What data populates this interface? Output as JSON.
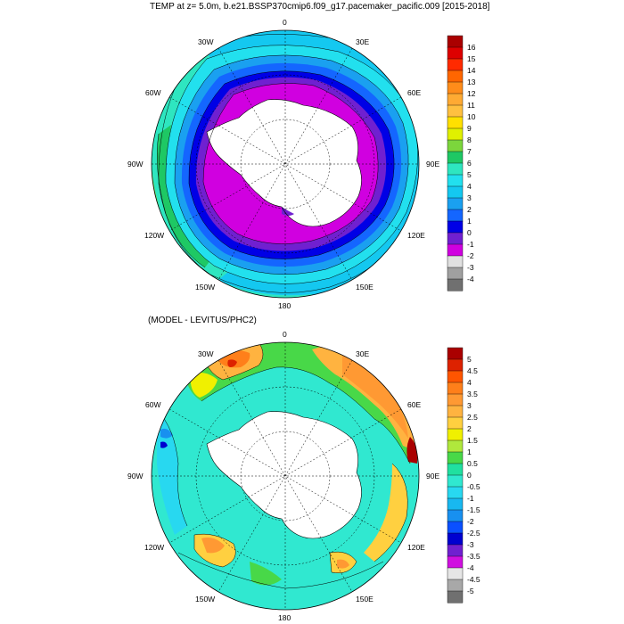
{
  "panels": [
    {
      "title": "TEMP at z=   5.0m, b.e21.BSSP370cmip6.f09_g17.pacemaker_pacific.009 [2015-2018]",
      "longitude_labels": [
        "0",
        "30E",
        "60E",
        "90E",
        "120E",
        "150E",
        "180",
        "150W",
        "120W",
        "90W",
        "60W",
        "30W"
      ],
      "colorbar": {
        "labels": [
          "16",
          "15",
          "14",
          "13",
          "12",
          "11",
          "10",
          "9",
          "8",
          "7",
          "6",
          "5",
          "4",
          "3",
          "2",
          "1",
          "0",
          "-1",
          "-2",
          "-3",
          "-4"
        ],
        "colors": [
          "#aa0000",
          "#dd0000",
          "#ff2a00",
          "#ff6600",
          "#ff8c1a",
          "#ffaa33",
          "#ffc040",
          "#ffe000",
          "#e0f000",
          "#7cd63c",
          "#1ec864",
          "#2ee6c0",
          "#22e0ee",
          "#14c8f0",
          "#1aa0f0",
          "#1466ff",
          "#0000e6",
          "#7020d0",
          "#d000e0",
          "#e0e0e0",
          "#a0a0a0",
          "#707070"
        ]
      }
    },
    {
      "title": "(MODEL - LEVITUS/PHC2)",
      "longitude_labels": [
        "0",
        "30E",
        "60E",
        "90E",
        "120E",
        "150E",
        "180",
        "150W",
        "120W",
        "90W",
        "60W",
        "30W"
      ],
      "colorbar": {
        "labels": [
          "5",
          "4.5",
          "4",
          "3.5",
          "3",
          "2.5",
          "2",
          "1.5",
          "1",
          "0.5",
          "0",
          "-0.5",
          "-1",
          "-1.5",
          "-2",
          "-2.5",
          "-3",
          "-3.5",
          "-4",
          "-4.5",
          "-5"
        ],
        "colors": [
          "#aa0000",
          "#dd2200",
          "#ff5500",
          "#ff7f1a",
          "#ff9933",
          "#ffb340",
          "#ffd040",
          "#f0f000",
          "#b0e83c",
          "#48d848",
          "#20e0a0",
          "#30e8d0",
          "#28d8f0",
          "#18b8f0",
          "#1890f0",
          "#0a50ff",
          "#0000d0",
          "#7020d0",
          "#d010e0",
          "#e6e6e6",
          "#a8a8a8",
          "#707070"
        ]
      }
    }
  ]
}
